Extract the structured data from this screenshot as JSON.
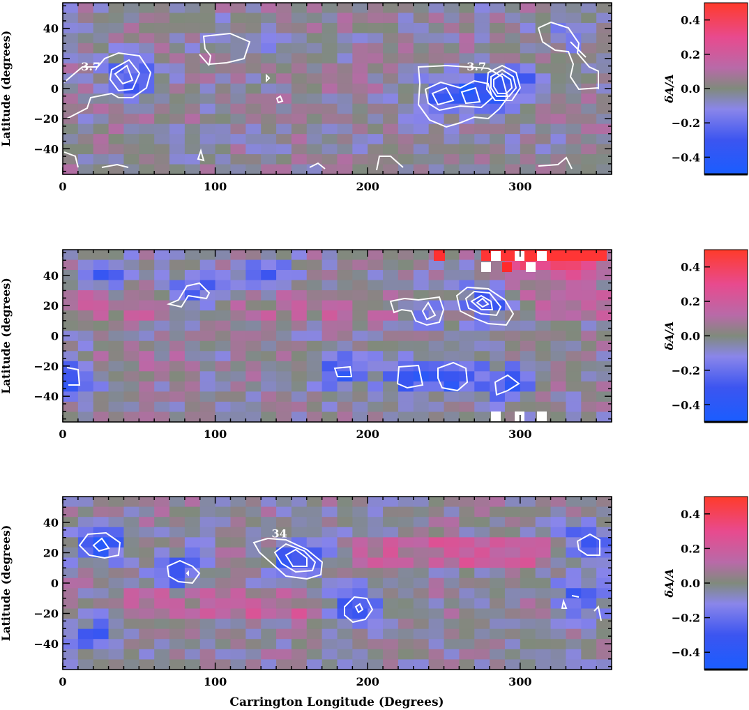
{
  "chart_data": [
    {
      "type": "heatmap",
      "panel": "top",
      "xlabel": "",
      "ylabel": "Latitude (degrees)",
      "xlim": [
        0,
        360
      ],
      "ylim": [
        -57,
        57
      ],
      "xticks": [
        "0",
        "100",
        "200",
        "300"
      ],
      "yticks": [
        "40",
        "20",
        "0",
        "−20",
        "−40"
      ],
      "colorbar": {
        "label": "δA/A",
        "range": [
          -0.5,
          0.5
        ],
        "ticks": [
          "0.4",
          "0.2",
          "0.0",
          "−0.2",
          "−0.4"
        ]
      },
      "contour_labels": [
        {
          "text": "3.7",
          "lon": 12,
          "lat": 12
        },
        {
          "text": "3.7",
          "lon": 265,
          "lat": 12
        }
      ],
      "features": [
        {
          "lon": 45,
          "lat": 8,
          "dA": -0.3
        },
        {
          "lon": 250,
          "lat": -5,
          "dA": -0.35
        },
        {
          "lon": 275,
          "lat": -3,
          "dA": -0.35
        },
        {
          "lon": 295,
          "lat": 3,
          "dA": -0.3
        },
        {
          "lon": 120,
          "lat": 30,
          "dA": -0.12
        },
        {
          "lon": 330,
          "lat": 35,
          "dA": -0.1
        }
      ]
    },
    {
      "type": "heatmap",
      "panel": "middle",
      "xlabel": "",
      "ylabel": "Latitude (degrees)",
      "xlim": [
        0,
        360
      ],
      "ylim": [
        -57,
        57
      ],
      "xticks": [
        "0",
        "100",
        "200",
        "300"
      ],
      "yticks": [
        "40",
        "20",
        "0",
        "−20",
        "−40"
      ],
      "colorbar": {
        "label": "δA/A",
        "range": [
          -0.5,
          0.5
        ],
        "ticks": [
          "0.4",
          "0.2",
          "0.0",
          "−0.2",
          "−0.4"
        ]
      },
      "contour_labels": [],
      "features": [
        {
          "lon": 88,
          "lat": 28,
          "dA": -0.3
        },
        {
          "lon": 240,
          "lat": 17,
          "dA": -0.3
        },
        {
          "lon": 278,
          "lat": 22,
          "dA": -0.4
        },
        {
          "lon": 8,
          "lat": -27,
          "dA": -0.35
        },
        {
          "lon": 185,
          "lat": -24,
          "dA": -0.3
        },
        {
          "lon": 228,
          "lat": -27,
          "dA": -0.3
        },
        {
          "lon": 258,
          "lat": -27,
          "dA": -0.4
        },
        {
          "lon": 292,
          "lat": -32,
          "dA": -0.3
        },
        {
          "lon": 30,
          "lat": 42,
          "dA": -0.25
        },
        {
          "lon": 135,
          "lat": 40,
          "dA": -0.25
        },
        {
          "lon": 300,
          "lat": 50,
          "dA": 0.45
        },
        {
          "lon": 330,
          "lat": 50,
          "dA": 0.45
        }
      ]
    },
    {
      "type": "heatmap",
      "panel": "bottom",
      "xlabel": "Carrington Longitude (Degrees)",
      "ylabel": "Latitude (degrees)",
      "xlim": [
        0,
        360
      ],
      "ylim": [
        -57,
        57
      ],
      "xticks": [
        "0",
        "100",
        "200",
        "300"
      ],
      "yticks": [
        "40",
        "20",
        "0",
        "−20",
        "−40"
      ],
      "colorbar": {
        "label": "δA/A",
        "range": [
          -0.5,
          0.5
        ],
        "ticks": [
          "0.4",
          "0.2",
          "0.0",
          "−0.2",
          "−0.4"
        ]
      },
      "contour_labels": [
        {
          "text": "34",
          "lon": 137,
          "lat": 30
        }
      ],
      "features": [
        {
          "lon": 25,
          "lat": 25,
          "dA": -0.35
        },
        {
          "lon": 78,
          "lat": 8,
          "dA": -0.3
        },
        {
          "lon": 155,
          "lat": 17,
          "dA": -0.4
        },
        {
          "lon": 195,
          "lat": -15,
          "dA": -0.35
        },
        {
          "lon": 345,
          "lat": 27,
          "dA": -0.3
        },
        {
          "lon": 340,
          "lat": -10,
          "dA": -0.3
        },
        {
          "lon": 20,
          "lat": -35,
          "dA": -0.25
        }
      ]
    }
  ]
}
